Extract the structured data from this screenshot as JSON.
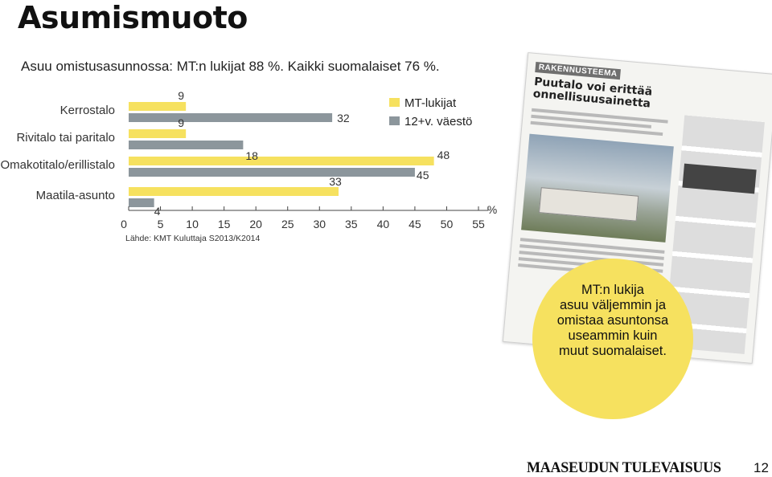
{
  "page": {
    "title": "Asumismuoto",
    "subtitle": "Asuu omistusasunnossa: MT:n lukijat 88 %. Kaikki suomalaiset 76 %.",
    "source": "Lähde: KMT Kuluttaja S2013/K2014",
    "callout_lines": [
      "MT:n lukija",
      "asuu väljemmin ja",
      "omistaa asuntonsa",
      "useammin kuin",
      "muut suomalaiset."
    ],
    "logo": "MAASEUDUN TULEVAISUUS",
    "page_number": "12",
    "newspaper": {
      "section": "RAKENNUSTEEMA",
      "headline": "Puutalo voi erittää onnellisuusainetta"
    }
  },
  "chart_data": {
    "type": "bar",
    "orientation": "horizontal",
    "categories": [
      "Kerrostalo",
      "Rivitalo tai paritalo",
      "Omakotitalo/erillistalo",
      "Maatila-asunto"
    ],
    "series": [
      {
        "name": "MT-lukijat",
        "values": [
          9,
          9,
          48,
          33
        ]
      },
      {
        "name": "12+v. väestö",
        "values": [
          32,
          18,
          45,
          4
        ]
      }
    ],
    "xlim": [
      0,
      55
    ],
    "xticks": [
      0,
      5,
      10,
      15,
      20,
      25,
      30,
      35,
      40,
      45,
      50,
      55
    ],
    "unit": "%",
    "grid": false,
    "legend_position": "top-right",
    "colors": {
      "MT-lukijat": "#f6e15f",
      "12+v. väestö": "#8c969c"
    }
  }
}
